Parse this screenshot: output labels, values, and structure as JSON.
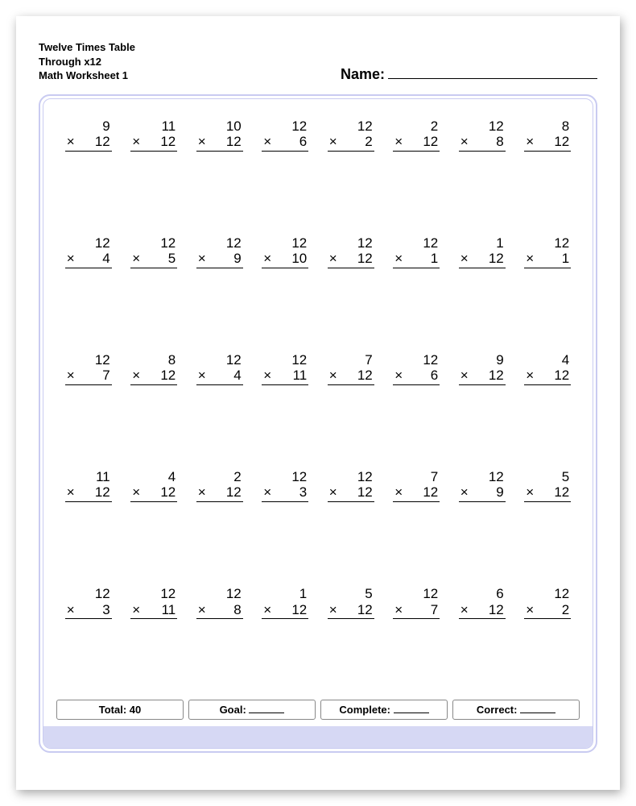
{
  "header": {
    "line1": "Twelve Times Table",
    "line2": "Through x12",
    "line3": "Math Worksheet 1",
    "name_label": "Name:"
  },
  "style": {
    "page_bg": "#ffffff",
    "frame_border_color": "#c9cbf1",
    "bottom_band_color": "#d6d8f4",
    "text_color": "#000000",
    "problem_fontsize": 17,
    "header_fontsize": 13,
    "name_fontsize": 18,
    "columns": 8,
    "rows": 5,
    "multiply_symbol": "×"
  },
  "problems": [
    [
      [
        9,
        12
      ],
      [
        11,
        12
      ],
      [
        10,
        12
      ],
      [
        12,
        6
      ],
      [
        12,
        2
      ],
      [
        2,
        12
      ],
      [
        12,
        8
      ],
      [
        8,
        12
      ]
    ],
    [
      [
        12,
        4
      ],
      [
        12,
        5
      ],
      [
        12,
        9
      ],
      [
        12,
        10
      ],
      [
        12,
        12
      ],
      [
        12,
        1
      ],
      [
        1,
        12
      ],
      [
        12,
        1
      ]
    ],
    [
      [
        12,
        7
      ],
      [
        8,
        12
      ],
      [
        12,
        4
      ],
      [
        12,
        11
      ],
      [
        7,
        12
      ],
      [
        12,
        6
      ],
      [
        9,
        12
      ],
      [
        4,
        12
      ]
    ],
    [
      [
        11,
        12
      ],
      [
        4,
        12
      ],
      [
        2,
        12
      ],
      [
        12,
        3
      ],
      [
        12,
        12
      ],
      [
        7,
        12
      ],
      [
        12,
        9
      ],
      [
        5,
        12
      ]
    ],
    [
      [
        12,
        3
      ],
      [
        12,
        11
      ],
      [
        12,
        8
      ],
      [
        1,
        12
      ],
      [
        5,
        12
      ],
      [
        12,
        7
      ],
      [
        6,
        12
      ],
      [
        12,
        2
      ]
    ]
  ],
  "footer": {
    "total_label": "Total:",
    "total_value": "40",
    "goal_label": "Goal:",
    "complete_label": "Complete:",
    "correct_label": "Correct:"
  }
}
